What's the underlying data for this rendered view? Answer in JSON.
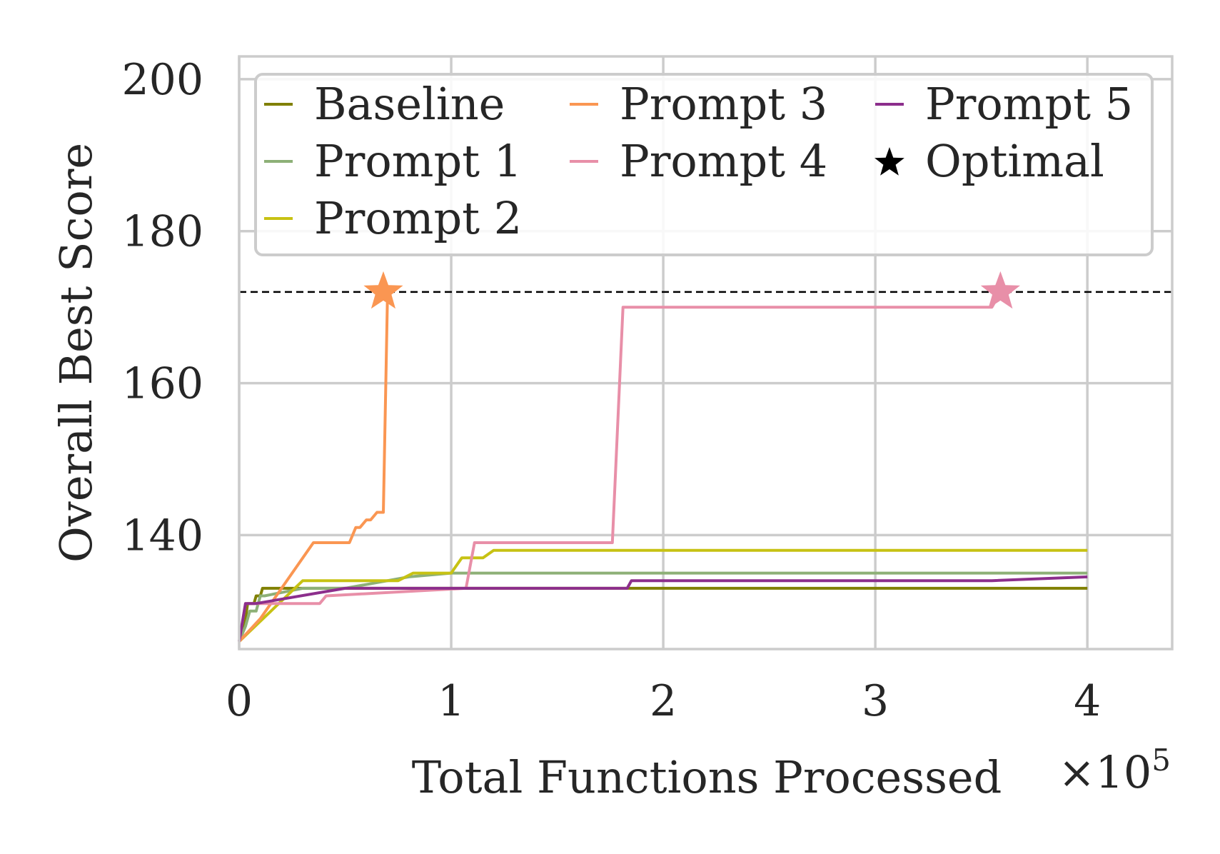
{
  "chart_data": {
    "type": "line",
    "title": "",
    "xlabel": "Total Functions Processed",
    "ylabel": "Overall Best Score",
    "x_multiplier_label": "×10",
    "x_multiplier_exponent": "5",
    "xlim": [
      0,
      4.4
    ],
    "ylim": [
      125,
      203
    ],
    "xticks": [
      0,
      1,
      2,
      3,
      4
    ],
    "xtick_labels": [
      "0",
      "1",
      "2",
      "3",
      "4"
    ],
    "yticks": [
      140,
      160,
      180,
      200
    ],
    "ytick_labels": [
      "140",
      "160",
      "180",
      "200"
    ],
    "grid": true,
    "legend_position": "top",
    "optimal_value": 172,
    "series": [
      {
        "name": "Baseline",
        "color": "#808000",
        "x": [
          0,
          0.03,
          0.04,
          0.07,
          0.08,
          0.1,
          0.11,
          0.18,
          0.2,
          0.21,
          4.0
        ],
        "y": [
          126,
          129,
          131,
          131,
          132,
          132,
          133,
          133,
          133,
          133,
          133
        ]
      },
      {
        "name": "Prompt 1",
        "color": "#8DB077",
        "x": [
          0,
          0.03,
          0.05,
          0.08,
          0.1,
          0.12,
          0.3,
          0.5,
          0.8,
          1.0,
          4.0
        ],
        "y": [
          126,
          128,
          130,
          130,
          132,
          132,
          133,
          133,
          134.5,
          135,
          135
        ]
      },
      {
        "name": "Prompt 2",
        "color": "#C7C213",
        "x": [
          0,
          0.3,
          0.33,
          0.75,
          0.82,
          1.0,
          1.05,
          1.1,
          1.15,
          1.2,
          4.0
        ],
        "y": [
          126,
          134,
          134,
          134,
          135,
          135,
          137,
          137,
          137,
          138,
          138
        ]
      },
      {
        "name": "Prompt 3",
        "color": "#FA9652",
        "x": [
          0,
          0.1,
          0.2,
          0.35,
          0.52,
          0.55,
          0.57,
          0.6,
          0.6,
          0.62,
          0.65,
          0.66,
          0.66,
          0.68,
          0.7
        ],
        "y": [
          126,
          129,
          133,
          139,
          139,
          141,
          141,
          142,
          142,
          142,
          143,
          143,
          143,
          143,
          172
        ]
      },
      {
        "name": "Prompt 4",
        "color": "#E88FA8",
        "x": [
          0,
          0.03,
          0.1,
          0.38,
          0.41,
          1.07,
          1.11,
          1.76,
          1.81,
          3.55,
          3.59
        ],
        "y": [
          126,
          131,
          131,
          131,
          132,
          133,
          139,
          139,
          170,
          170,
          172
        ]
      },
      {
        "name": "Prompt 5",
        "color": "#8C2E8C",
        "x": [
          0,
          0.03,
          0.08,
          0.5,
          1.0,
          1.83,
          1.85,
          3.55,
          4.0
        ],
        "y": [
          126,
          131,
          131,
          133,
          133,
          133,
          134,
          134,
          134.5
        ]
      }
    ],
    "markers": [
      {
        "name": "Optimal",
        "label": "Optimal",
        "color": "#000000",
        "symbol": "star"
      },
      {
        "series": "Prompt 3",
        "x": 0.68,
        "y": 172,
        "color": "#FA9652",
        "symbol": "star"
      },
      {
        "series": "Prompt 4",
        "x": 3.59,
        "y": 172,
        "color": "#E88FA8",
        "symbol": "star"
      }
    ]
  }
}
